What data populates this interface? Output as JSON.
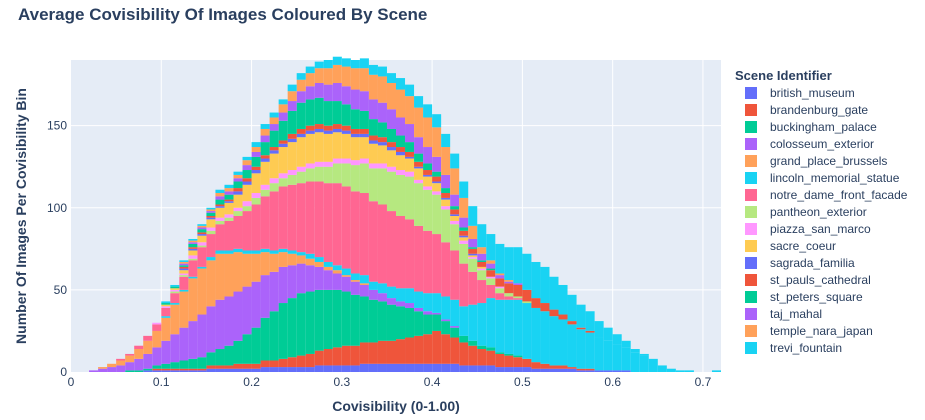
{
  "chart_data": {
    "type": "bar",
    "stacked": true,
    "title": "Average Covisibility Of Images Coloured By Scene",
    "xlabel": "Covisibility (0-1.00)",
    "ylabel": "Number Of Images Per Covisibility Bin",
    "xlim": [
      0,
      0.72
    ],
    "ylim": [
      0,
      190
    ],
    "grid": true,
    "legend_title": "Scene Identifier",
    "legend_position": "right",
    "bin_width": 0.01,
    "x_ticks": [
      {
        "v": 0,
        "label": "0"
      },
      {
        "v": 0.1,
        "label": "0.1"
      },
      {
        "v": 0.2,
        "label": "0.2"
      },
      {
        "v": 0.3,
        "label": "0.3"
      },
      {
        "v": 0.4,
        "label": "0.4"
      },
      {
        "v": 0.5,
        "label": "0.5"
      },
      {
        "v": 0.6,
        "label": "0.6"
      },
      {
        "v": 0.7,
        "label": "0.7"
      }
    ],
    "y_ticks": [
      {
        "v": 0,
        "label": "0"
      },
      {
        "v": 50,
        "label": "50"
      },
      {
        "v": 100,
        "label": "100"
      },
      {
        "v": 150,
        "label": "150"
      }
    ],
    "series": [
      {
        "name": "british_museum",
        "color": "#636efa",
        "values": [
          0,
          0,
          0,
          0,
          0,
          0,
          0,
          0,
          1,
          1,
          1,
          1,
          1,
          1,
          1,
          2,
          2,
          2,
          2,
          2,
          2,
          3,
          3,
          3,
          3,
          3,
          3,
          4,
          4,
          4,
          4,
          4,
          5,
          5,
          5,
          5,
          5,
          5,
          5,
          5,
          5,
          5,
          5,
          4,
          4,
          4,
          4,
          3,
          3,
          3,
          3,
          2,
          2,
          2,
          2,
          2,
          1,
          1,
          1,
          1,
          1,
          1,
          0,
          0,
          0,
          0,
          0,
          0,
          0,
          0,
          0,
          0
        ]
      },
      {
        "name": "brandenburg_gate",
        "color": "#ef553b",
        "values": [
          0,
          0,
          0,
          0,
          0,
          0,
          0,
          0,
          0,
          1,
          1,
          1,
          1,
          1,
          1,
          2,
          2,
          2,
          3,
          3,
          3,
          4,
          4,
          5,
          6,
          7,
          8,
          9,
          10,
          11,
          12,
          12,
          13,
          13,
          14,
          14,
          15,
          16,
          17,
          18,
          20,
          18,
          16,
          14,
          12,
          10,
          9,
          8,
          7,
          6,
          5,
          4,
          3,
          2,
          2,
          1,
          1,
          1,
          0,
          0,
          0,
          0,
          0,
          0,
          0,
          0,
          0,
          0,
          0,
          0,
          0,
          0
        ]
      },
      {
        "name": "buckingham_palace",
        "color": "#00cc96",
        "values": [
          0,
          0,
          0,
          0,
          0,
          0,
          1,
          1,
          1,
          2,
          3,
          4,
          5,
          6,
          7,
          8,
          10,
          12,
          14,
          18,
          22,
          26,
          30,
          34,
          36,
          38,
          38,
          37,
          36,
          35,
          33,
          31,
          28,
          26,
          24,
          22,
          20,
          18,
          15,
          12,
          10,
          8,
          6,
          4,
          3,
          2,
          2,
          1,
          1,
          1,
          0,
          0,
          0,
          0,
          0,
          0,
          0,
          0,
          0,
          0,
          0,
          0,
          0,
          0,
          0,
          0,
          0,
          0,
          0,
          0,
          0,
          0
        ]
      },
      {
        "name": "colosseum_exterior",
        "color": "#ab63fa",
        "values": [
          0,
          0,
          1,
          2,
          3,
          4,
          5,
          7,
          9,
          11,
          14,
          17,
          20,
          23,
          26,
          28,
          30,
          30,
          30,
          29,
          28,
          26,
          24,
          22,
          20,
          18,
          16,
          14,
          12,
          10,
          9,
          8,
          7,
          6,
          5,
          4,
          3,
          3,
          2,
          2,
          1,
          1,
          1,
          0,
          0,
          0,
          0,
          0,
          0,
          0,
          0,
          0,
          0,
          0,
          0,
          0,
          0,
          0,
          0,
          0,
          0,
          0,
          0,
          0,
          0,
          0,
          0,
          0,
          0,
          0,
          0,
          0
        ]
      },
      {
        "name": "grand_place_brussels",
        "color": "#ffa15a",
        "values": [
          0,
          0,
          0,
          1,
          2,
          3,
          4,
          6,
          8,
          10,
          14,
          18,
          22,
          26,
          28,
          28,
          28,
          26,
          24,
          20,
          17,
          14,
          11,
          9,
          7,
          5,
          4,
          3,
          2,
          2,
          1,
          1,
          1,
          0,
          0,
          0,
          0,
          0,
          0,
          0,
          0,
          0,
          0,
          0,
          0,
          0,
          0,
          0,
          0,
          0,
          0,
          0,
          0,
          0,
          0,
          0,
          0,
          0,
          0,
          0,
          0,
          0,
          0,
          0,
          0,
          0,
          0,
          0,
          0,
          0,
          0,
          0
        ]
      },
      {
        "name": "lincoln_memorial_statue",
        "color": "#19d3f3",
        "values": [
          0,
          0,
          0,
          0,
          0,
          0,
          0,
          0,
          0,
          0,
          1,
          1,
          1,
          1,
          1,
          2,
          2,
          2,
          2,
          2,
          2,
          2,
          2,
          2,
          2,
          2,
          3,
          3,
          3,
          3,
          4,
          4,
          5,
          5,
          6,
          7,
          8,
          9,
          10,
          11,
          12,
          14,
          16,
          18,
          22,
          26,
          30,
          32,
          33,
          34,
          34,
          33,
          32,
          30,
          28,
          26,
          24,
          22,
          20,
          18,
          16,
          14,
          12,
          10,
          7,
          4,
          2,
          1,
          1,
          0,
          0,
          1
        ]
      },
      {
        "name": "notre_dame_front_facade",
        "color": "#ff6692",
        "values": [
          0,
          0,
          0,
          0,
          0,
          1,
          1,
          2,
          3,
          4,
          5,
          6,
          8,
          10,
          12,
          14,
          16,
          18,
          20,
          24,
          28,
          32,
          36,
          38,
          40,
          42,
          44,
          46,
          48,
          50,
          50,
          50,
          50,
          49,
          48,
          46,
          44,
          42,
          40,
          38,
          36,
          33,
          30,
          26,
          20,
          14,
          8,
          4,
          2,
          1,
          0,
          0,
          0,
          0,
          0,
          0,
          0,
          0,
          0,
          0,
          0,
          0,
          0,
          0,
          0,
          0,
          0,
          0,
          0,
          0,
          0,
          0
        ]
      },
      {
        "name": "pantheon_exterior",
        "color": "#b6e880",
        "values": [
          0,
          0,
          0,
          0,
          0,
          0,
          0,
          0,
          0,
          0,
          0,
          1,
          1,
          1,
          1,
          2,
          2,
          2,
          3,
          3,
          4,
          4,
          5,
          5,
          6,
          7,
          8,
          9,
          10,
          12,
          14,
          16,
          18,
          20,
          22,
          24,
          25,
          26,
          26,
          25,
          24,
          20,
          16,
          12,
          8,
          6,
          4,
          3,
          2,
          1,
          1,
          0,
          0,
          0,
          0,
          0,
          0,
          0,
          0,
          0,
          0,
          0,
          0,
          0,
          0,
          0,
          0,
          0,
          0,
          0,
          0,
          0
        ]
      },
      {
        "name": "piazza_san_marco",
        "color": "#ff97ff",
        "values": [
          0,
          0,
          0,
          0,
          0,
          0,
          0,
          0,
          0,
          1,
          1,
          1,
          1,
          2,
          2,
          2,
          2,
          2,
          2,
          3,
          3,
          3,
          3,
          3,
          3,
          3,
          3,
          3,
          3,
          3,
          3,
          3,
          3,
          3,
          3,
          3,
          3,
          3,
          2,
          2,
          2,
          2,
          2,
          2,
          1,
          1,
          1,
          1,
          0,
          0,
          0,
          0,
          0,
          0,
          0,
          0,
          0,
          0,
          0,
          0,
          0,
          0,
          0,
          0,
          0,
          0,
          0,
          0,
          0,
          0,
          0,
          0
        ]
      },
      {
        "name": "sacre_coeur",
        "color": "#fecb52",
        "values": [
          0,
          0,
          0,
          0,
          0,
          0,
          0,
          0,
          0,
          0,
          1,
          1,
          2,
          3,
          4,
          5,
          6,
          7,
          8,
          10,
          12,
          14,
          15,
          16,
          17,
          18,
          18,
          18,
          17,
          16,
          15,
          14,
          13,
          12,
          11,
          10,
          9,
          8,
          7,
          6,
          5,
          4,
          3,
          2,
          1,
          1,
          0,
          0,
          0,
          0,
          0,
          0,
          0,
          0,
          0,
          0,
          0,
          0,
          0,
          0,
          0,
          0,
          0,
          0,
          0,
          0,
          0,
          0,
          0,
          0,
          0,
          0
        ]
      },
      {
        "name": "sagrada_familia",
        "color": "#636efa",
        "values": [
          0,
          0,
          0,
          0,
          0,
          0,
          0,
          0,
          0,
          0,
          0,
          0,
          1,
          1,
          1,
          1,
          1,
          1,
          2,
          2,
          2,
          2,
          2,
          2,
          2,
          2,
          2,
          2,
          2,
          2,
          2,
          2,
          2,
          2,
          2,
          2,
          2,
          1,
          1,
          1,
          1,
          1,
          1,
          1,
          1,
          0,
          0,
          0,
          0,
          0,
          0,
          0,
          0,
          0,
          0,
          0,
          0,
          0,
          0,
          0,
          0,
          0,
          0,
          0,
          0,
          0,
          0,
          0,
          0,
          0,
          0,
          0
        ]
      },
      {
        "name": "st_pauls_cathedral",
        "color": "#ef553b",
        "values": [
          0,
          0,
          0,
          0,
          0,
          0,
          0,
          0,
          0,
          0,
          0,
          0,
          1,
          1,
          1,
          1,
          1,
          1,
          2,
          2,
          2,
          2,
          2,
          2,
          3,
          3,
          3,
          3,
          3,
          3,
          3,
          3,
          3,
          3,
          3,
          3,
          3,
          3,
          3,
          3,
          3,
          3,
          3,
          3,
          3,
          3,
          4,
          5,
          6,
          7,
          7,
          6,
          5,
          4,
          3,
          2,
          1,
          1,
          0,
          0,
          0,
          0,
          0,
          0,
          0,
          0,
          0,
          0,
          0,
          0,
          0,
          0
        ]
      },
      {
        "name": "st_peters_square",
        "color": "#00cc96",
        "values": [
          0,
          0,
          0,
          0,
          0,
          0,
          0,
          0,
          0,
          0,
          1,
          1,
          1,
          2,
          2,
          2,
          3,
          3,
          4,
          5,
          6,
          8,
          10,
          12,
          14,
          16,
          16,
          16,
          15,
          14,
          13,
          12,
          11,
          10,
          9,
          8,
          7,
          6,
          5,
          4,
          3,
          3,
          2,
          2,
          1,
          1,
          1,
          0,
          0,
          0,
          0,
          0,
          0,
          0,
          0,
          0,
          0,
          0,
          0,
          0,
          0,
          0,
          0,
          0,
          0,
          0,
          0,
          0,
          0,
          0,
          0,
          0
        ]
      },
      {
        "name": "taj_mahal",
        "color": "#ab63fa",
        "values": [
          0,
          0,
          0,
          0,
          0,
          0,
          0,
          0,
          0,
          0,
          0,
          0,
          1,
          1,
          1,
          1,
          2,
          2,
          2,
          3,
          3,
          4,
          4,
          5,
          6,
          7,
          8,
          9,
          10,
          11,
          11,
          12,
          12,
          12,
          12,
          12,
          11,
          11,
          10,
          10,
          9,
          8,
          7,
          6,
          5,
          4,
          3,
          2,
          1,
          1,
          0,
          0,
          0,
          0,
          0,
          0,
          0,
          0,
          0,
          0,
          0,
          0,
          0,
          0,
          0,
          0,
          0,
          0,
          0,
          0,
          0,
          0
        ]
      },
      {
        "name": "temple_nara_japan",
        "color": "#ffa15a",
        "values": [
          0,
          0,
          0,
          0,
          0,
          0,
          0,
          0,
          0,
          0,
          0,
          0,
          1,
          1,
          1,
          1,
          2,
          2,
          2,
          3,
          3,
          4,
          4,
          5,
          6,
          7,
          8,
          9,
          10,
          11,
          12,
          13,
          14,
          15,
          16,
          16,
          17,
          17,
          18,
          18,
          18,
          17,
          16,
          12,
          8,
          4,
          2,
          1,
          1,
          0,
          0,
          0,
          0,
          0,
          0,
          0,
          0,
          0,
          0,
          0,
          0,
          0,
          0,
          0,
          0,
          0,
          0,
          0,
          0,
          0,
          0,
          0
        ]
      },
      {
        "name": "trevi_fountain",
        "color": "#19d3f3",
        "values": [
          0,
          0,
          0,
          0,
          0,
          0,
          0,
          0,
          0,
          0,
          1,
          1,
          1,
          1,
          1,
          1,
          2,
          2,
          2,
          2,
          3,
          3,
          3,
          3,
          4,
          4,
          4,
          4,
          5,
          5,
          5,
          5,
          6,
          6,
          6,
          6,
          7,
          7,
          7,
          8,
          8,
          8,
          9,
          10,
          12,
          14,
          16,
          18,
          20,
          22,
          22,
          22,
          22,
          20,
          18,
          16,
          14,
          12,
          10,
          8,
          6,
          4,
          2,
          1,
          1,
          0,
          0,
          0,
          0,
          0,
          0,
          0
        ]
      }
    ]
  }
}
